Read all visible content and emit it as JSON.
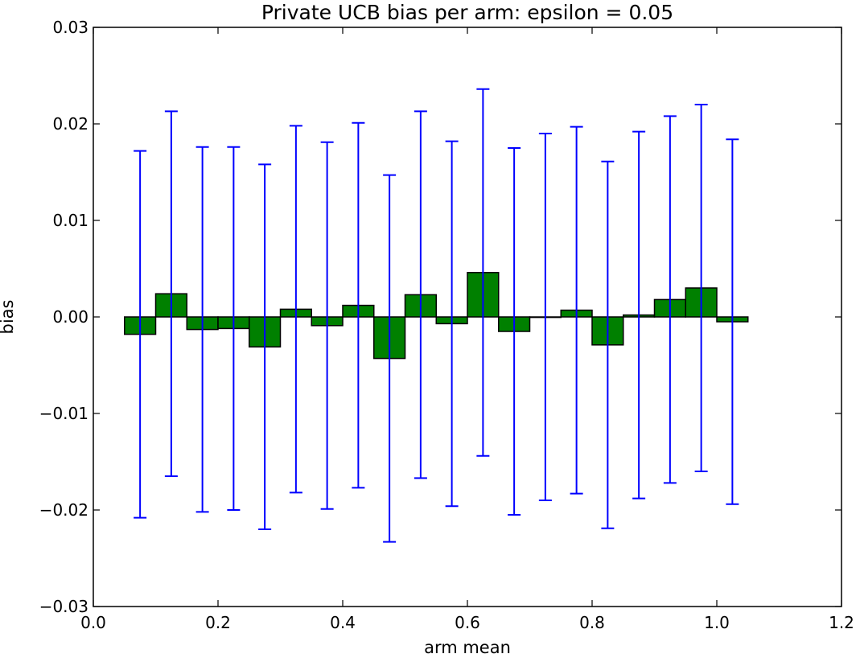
{
  "chart_data": {
    "type": "bar",
    "title": "Private UCB bias per arm: epsilon = 0.05",
    "xlabel": "arm mean",
    "ylabel": "bias",
    "xlim": [
      0.0,
      1.2
    ],
    "ylim": [
      -0.03,
      0.03
    ],
    "bar_width": 0.05,
    "bar_color": "#008000",
    "error_color": "#0000ff",
    "x": [
      0.05,
      0.1,
      0.15,
      0.2,
      0.25,
      0.3,
      0.35,
      0.4,
      0.45,
      0.5,
      0.55,
      0.6,
      0.65,
      0.7,
      0.75,
      0.8,
      0.85,
      0.9,
      0.95,
      1.0
    ],
    "values": [
      -0.0018,
      0.0024,
      -0.0013,
      -0.0012,
      -0.0031,
      0.0008,
      -0.0009,
      0.0012,
      -0.0043,
      0.0023,
      -0.0007,
      0.0046,
      -0.0015,
      0.0,
      0.0007,
      -0.0029,
      0.0002,
      0.0018,
      0.003,
      -0.0005
    ],
    "errors": [
      0.019,
      0.0189,
      0.0189,
      0.0188,
      0.0189,
      0.019,
      0.019,
      0.0189,
      0.019,
      0.019,
      0.0189,
      0.019,
      0.019,
      0.019,
      0.019,
      0.019,
      0.019,
      0.019,
      0.019,
      0.0189
    ],
    "xticks": [
      "0.0",
      "0.2",
      "0.4",
      "0.6",
      "0.8",
      "1.0",
      "1.2"
    ],
    "xtick_values": [
      0.0,
      0.2,
      0.4,
      0.6,
      0.8,
      1.0,
      1.2
    ],
    "yticks": [
      "−0.03",
      "−0.02",
      "−0.01",
      "0.00",
      "0.01",
      "0.02",
      "0.03"
    ],
    "ytick_values": [
      -0.03,
      -0.02,
      -0.01,
      0.0,
      0.01,
      0.02,
      0.03
    ],
    "grid": false,
    "legend": false
  }
}
